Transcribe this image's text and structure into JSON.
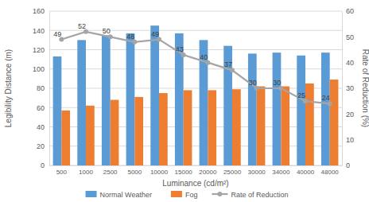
{
  "chart_data": {
    "type": "bar",
    "categories": [
      "500",
      "1000",
      "2500",
      "5000",
      "10000",
      "15000",
      "20000",
      "25000",
      "30000",
      "34000",
      "40000",
      "48000"
    ],
    "x_label": "Luminance (cd/m²)",
    "y_label": "Legibility Distance (m)",
    "y2_label": "Rate of Reduction (%)",
    "ylim": [
      0,
      160
    ],
    "yticks": [
      0,
      20,
      40,
      60,
      80,
      100,
      120,
      140,
      160
    ],
    "y2lim": [
      0,
      60
    ],
    "y2ticks": [
      0,
      10,
      20,
      30,
      40,
      50,
      60
    ],
    "grid": true,
    "legend": "bottom",
    "series": [
      {
        "name": "Normal Weather",
        "type": "bar",
        "color": "#5b9bd5",
        "values": [
          113,
          130,
          135,
          137,
          145,
          137,
          130,
          124,
          116,
          117,
          114,
          117
        ]
      },
      {
        "name": "Fog",
        "type": "bar",
        "color": "#ed7d31",
        "values": [
          57,
          62,
          68,
          71,
          75,
          78,
          78,
          79,
          82,
          82,
          85,
          89
        ]
      },
      {
        "name": "Rate of Reduction",
        "type": "line",
        "axis": "y2",
        "color": "#a5a5a5",
        "marker": "circle",
        "data_labels": true,
        "values": [
          49,
          52,
          50,
          48,
          49,
          43,
          40,
          37,
          30,
          30,
          25,
          24
        ]
      }
    ]
  }
}
